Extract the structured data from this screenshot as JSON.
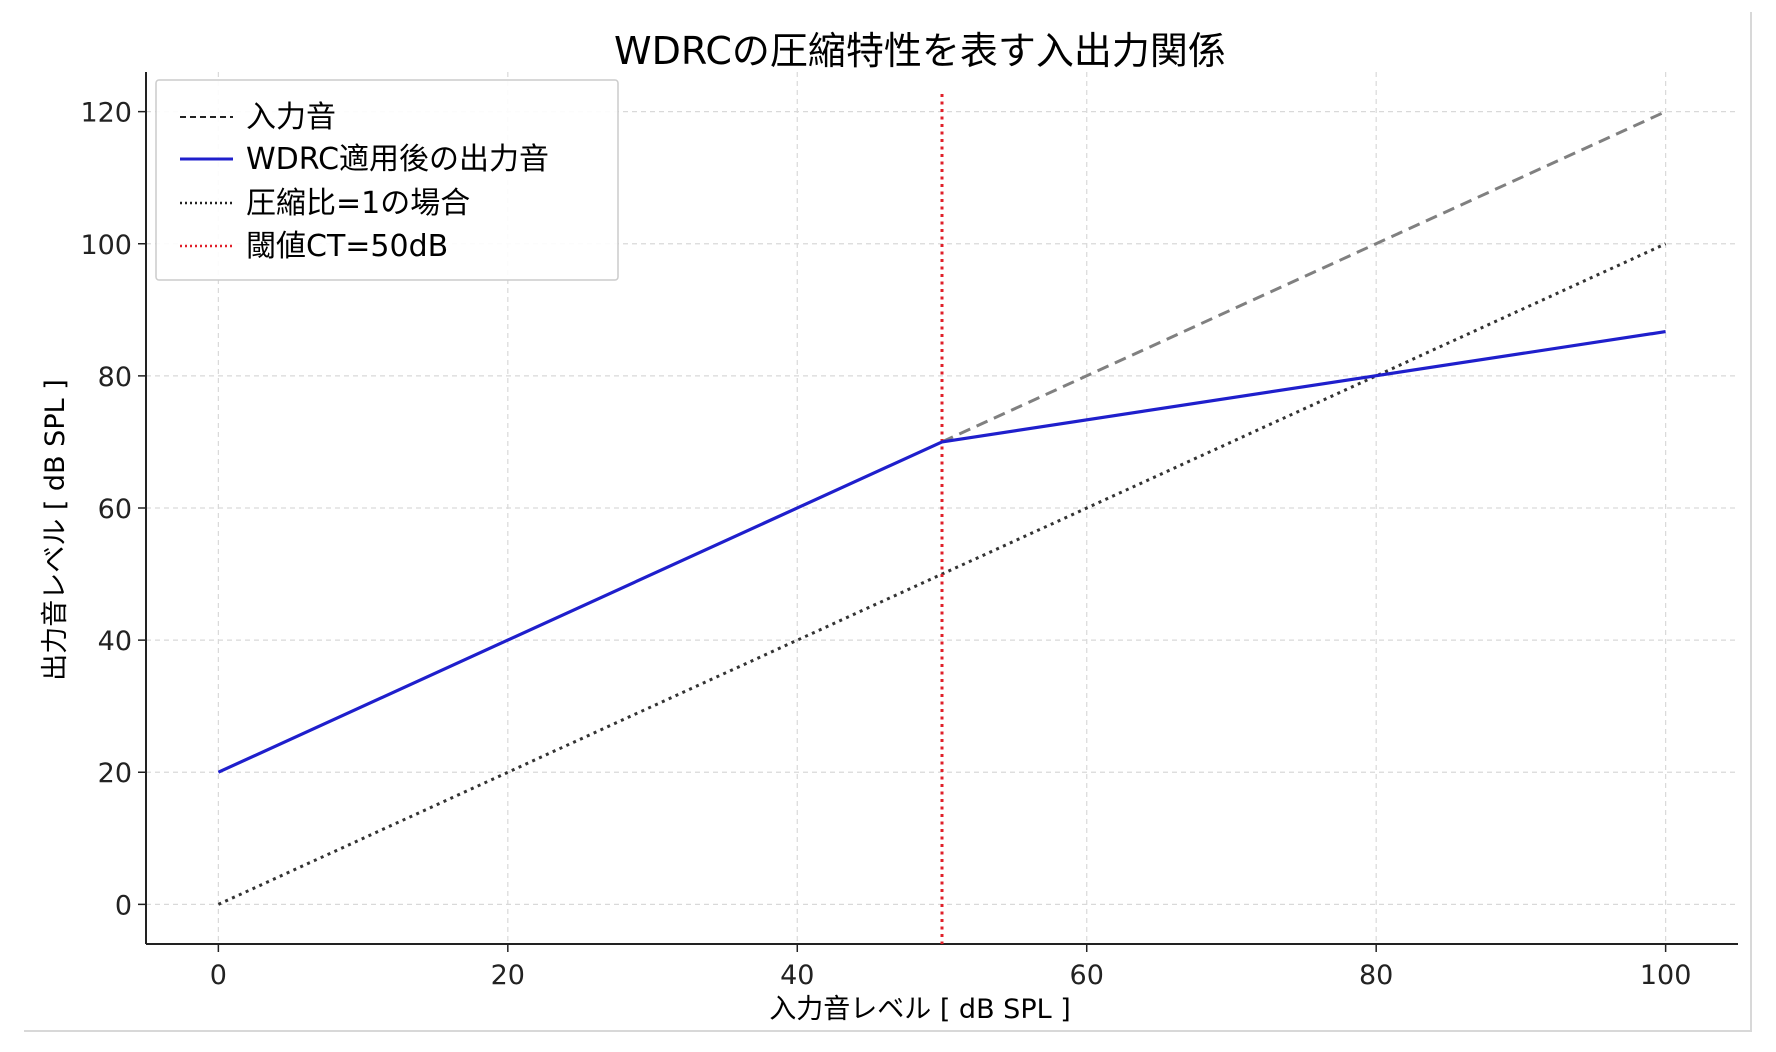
{
  "chart_data": {
    "type": "line",
    "title": "WDRCの圧縮特性を表す入出力関係",
    "xlabel": "入力音レベル [ dB  SPL ]",
    "ylabel": "出力音レベル [ dB  SPL ]",
    "xlim": [
      -5,
      105
    ],
    "ylim": [
      -6,
      126
    ],
    "xticks": [
      0,
      20,
      40,
      60,
      80,
      100
    ],
    "yticks": [
      0,
      20,
      40,
      60,
      80,
      100,
      120
    ],
    "grid": true,
    "legend_position": "top-left",
    "series": [
      {
        "name": "入力音",
        "style": "dashed",
        "color": "#808080",
        "x": [
          50,
          100
        ],
        "y": [
          70,
          120
        ]
      },
      {
        "name": "WDRC適用後の出力音",
        "style": "solid",
        "color": "#1f1fcc",
        "x": [
          0,
          50,
          100
        ],
        "y": [
          20,
          70,
          86.7
        ]
      },
      {
        "name": "圧縮比=1の場合",
        "style": "dotted",
        "color": "#333333",
        "x": [
          0,
          100
        ],
        "y": [
          0,
          100
        ]
      },
      {
        "name": "閾値CT=50dB",
        "style": "dotted",
        "color": "#e0202a",
        "vline_x": 50
      }
    ]
  }
}
